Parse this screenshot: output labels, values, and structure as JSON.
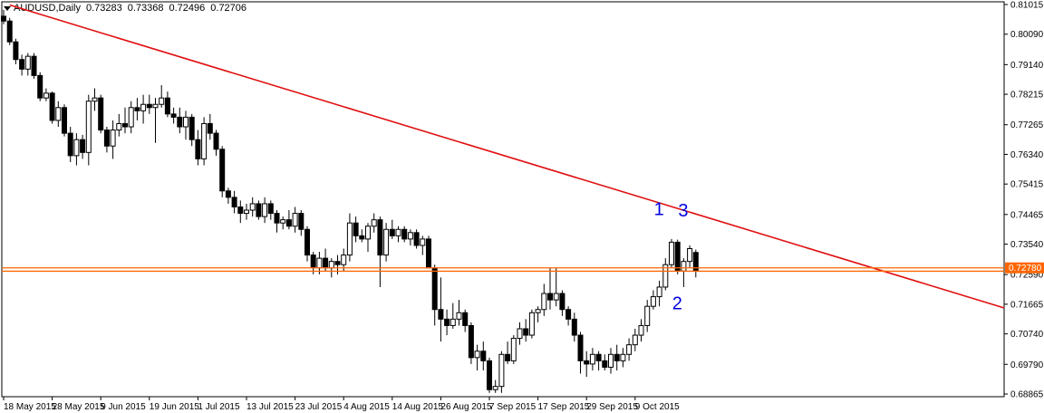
{
  "header": {
    "symbol": "AUDUSD,Daily",
    "open": "0.73283",
    "high": "0.73368",
    "low": "0.72496",
    "close": "0.72706"
  },
  "current_price_label": "0.72780",
  "annotations": [
    "1",
    "2",
    "3"
  ],
  "colors": {
    "trendline": "#e01010",
    "horizontal_line": "#ff6600",
    "annotation": "#0000e0",
    "price_tag": "#ff6600",
    "candle_bull_fill": "#ffffff",
    "candle_bear_fill": "#000000"
  },
  "chart_data": {
    "type": "candlestick",
    "symbol": "AUDUSD",
    "timeframe": "Daily",
    "y_ticks": [
      "0.81015",
      "0.80090",
      "0.79140",
      "0.78215",
      "0.77265",
      "0.76340",
      "0.75415",
      "0.74465",
      "0.73540",
      "0.72590",
      "0.71665",
      "0.70740",
      "0.69790",
      "0.68865"
    ],
    "ylim": [
      0.68865,
      0.81015
    ],
    "x_tick_labels": [
      "18 May 2015",
      "28 May 2015",
      "9 Jun 2015",
      "19 Jun 2015",
      "1 Jul 2015",
      "13 Jul 2015",
      "23 Jul 2015",
      "4 Aug 2015",
      "14 Aug 2015",
      "26 Aug 2015",
      "7 Sep 2015",
      "17 Sep 2015",
      "29 Sep 2015",
      "9 Oct 2015"
    ],
    "x_tick_bar_index": [
      0,
      8,
      16,
      24,
      32,
      40,
      48,
      56,
      64,
      72,
      80,
      88,
      96,
      104
    ],
    "candles": [
      [
        0.8065,
        0.8085,
        0.804,
        0.805
      ],
      [
        0.805,
        0.806,
        0.7975,
        0.7985
      ],
      [
        0.7985,
        0.7995,
        0.7915,
        0.793
      ],
      [
        0.793,
        0.7945,
        0.788,
        0.79
      ],
      [
        0.79,
        0.795,
        0.788,
        0.794
      ],
      [
        0.794,
        0.795,
        0.787,
        0.788
      ],
      [
        0.788,
        0.789,
        0.78,
        0.781
      ],
      [
        0.781,
        0.784,
        0.78,
        0.7825
      ],
      [
        0.7825,
        0.783,
        0.773,
        0.774
      ],
      [
        0.774,
        0.78,
        0.772,
        0.778
      ],
      [
        0.778,
        0.779,
        0.769,
        0.77
      ],
      [
        0.77,
        0.772,
        0.761,
        0.763
      ],
      [
        0.763,
        0.77,
        0.76,
        0.768
      ],
      [
        0.768,
        0.7695,
        0.762,
        0.764
      ],
      [
        0.764,
        0.782,
        0.76,
        0.78
      ],
      [
        0.78,
        0.784,
        0.777,
        0.781
      ],
      [
        0.781,
        0.782,
        0.77,
        0.771
      ],
      [
        0.771,
        0.772,
        0.764,
        0.766
      ],
      [
        0.766,
        0.774,
        0.762,
        0.771
      ],
      [
        0.771,
        0.776,
        0.769,
        0.773
      ],
      [
        0.773,
        0.778,
        0.77,
        0.772
      ],
      [
        0.772,
        0.78,
        0.77,
        0.778
      ],
      [
        0.778,
        0.781,
        0.774,
        0.777
      ],
      [
        0.777,
        0.782,
        0.773,
        0.779
      ],
      [
        0.779,
        0.782,
        0.776,
        0.778
      ],
      [
        0.778,
        0.781,
        0.767,
        0.779
      ],
      [
        0.779,
        0.785,
        0.778,
        0.781
      ],
      [
        0.781,
        0.783,
        0.775,
        0.776
      ],
      [
        0.776,
        0.778,
        0.773,
        0.775
      ],
      [
        0.775,
        0.778,
        0.77,
        0.772
      ],
      [
        0.772,
        0.777,
        0.768,
        0.775
      ],
      [
        0.775,
        0.776,
        0.766,
        0.768
      ],
      [
        0.768,
        0.771,
        0.76,
        0.762
      ],
      [
        0.762,
        0.775,
        0.76,
        0.773
      ],
      [
        0.773,
        0.776,
        0.768,
        0.77
      ],
      [
        0.77,
        0.771,
        0.763,
        0.765
      ],
      [
        0.765,
        0.766,
        0.75,
        0.752
      ],
      [
        0.752,
        0.753,
        0.748,
        0.75
      ],
      [
        0.75,
        0.752,
        0.745,
        0.747
      ],
      [
        0.747,
        0.749,
        0.742,
        0.745
      ],
      [
        0.745,
        0.748,
        0.743,
        0.746
      ],
      [
        0.746,
        0.75,
        0.744,
        0.748
      ],
      [
        0.748,
        0.749,
        0.743,
        0.744
      ],
      [
        0.744,
        0.75,
        0.742,
        0.748
      ],
      [
        0.748,
        0.749,
        0.743,
        0.745
      ],
      [
        0.745,
        0.746,
        0.739,
        0.742
      ],
      [
        0.742,
        0.744,
        0.74,
        0.743
      ],
      [
        0.743,
        0.746,
        0.74,
        0.741
      ],
      [
        0.741,
        0.747,
        0.739,
        0.745
      ],
      [
        0.745,
        0.746,
        0.738,
        0.74
      ],
      [
        0.74,
        0.741,
        0.73,
        0.732
      ],
      [
        0.732,
        0.733,
        0.726,
        0.728
      ],
      [
        0.728,
        0.733,
        0.726,
        0.731
      ],
      [
        0.731,
        0.734,
        0.727,
        0.728
      ],
      [
        0.728,
        0.731,
        0.725,
        0.73
      ],
      [
        0.73,
        0.732,
        0.726,
        0.729
      ],
      [
        0.729,
        0.734,
        0.727,
        0.732
      ],
      [
        0.732,
        0.745,
        0.73,
        0.742
      ],
      [
        0.742,
        0.744,
        0.736,
        0.738
      ],
      [
        0.738,
        0.74,
        0.736,
        0.737
      ],
      [
        0.737,
        0.742,
        0.733,
        0.741
      ],
      [
        0.741,
        0.745,
        0.739,
        0.743
      ],
      [
        0.743,
        0.744,
        0.722,
        0.732
      ],
      [
        0.732,
        0.742,
        0.73,
        0.74
      ],
      [
        0.74,
        0.743,
        0.737,
        0.738
      ],
      [
        0.738,
        0.741,
        0.736,
        0.74
      ],
      [
        0.74,
        0.741,
        0.736,
        0.737
      ],
      [
        0.737,
        0.74,
        0.735,
        0.739
      ],
      [
        0.739,
        0.74,
        0.734,
        0.735
      ],
      [
        0.735,
        0.738,
        0.732,
        0.737
      ],
      [
        0.737,
        0.738,
        0.729,
        0.728
      ],
      [
        0.728,
        0.729,
        0.71,
        0.715
      ],
      [
        0.715,
        0.725,
        0.705,
        0.712
      ],
      [
        0.712,
        0.715,
        0.707,
        0.71
      ],
      [
        0.71,
        0.717,
        0.709,
        0.712
      ],
      [
        0.712,
        0.718,
        0.71,
        0.714
      ],
      [
        0.714,
        0.715,
        0.708,
        0.71
      ],
      [
        0.71,
        0.711,
        0.698,
        0.7
      ],
      [
        0.7,
        0.704,
        0.696,
        0.702
      ],
      [
        0.702,
        0.705,
        0.696,
        0.699
      ],
      [
        0.699,
        0.7,
        0.689,
        0.69
      ],
      [
        0.69,
        0.693,
        0.689,
        0.691
      ],
      [
        0.691,
        0.702,
        0.689,
        0.701
      ],
      [
        0.701,
        0.705,
        0.698,
        0.699
      ],
      [
        0.699,
        0.707,
        0.698,
        0.706
      ],
      [
        0.706,
        0.711,
        0.704,
        0.709
      ],
      [
        0.709,
        0.712,
        0.705,
        0.707
      ],
      [
        0.707,
        0.715,
        0.706,
        0.714
      ],
      [
        0.714,
        0.716,
        0.711,
        0.715
      ],
      [
        0.715,
        0.723,
        0.713,
        0.72
      ],
      [
        0.72,
        0.728,
        0.715,
        0.718
      ],
      [
        0.718,
        0.728,
        0.716,
        0.72
      ],
      [
        0.72,
        0.721,
        0.713,
        0.715
      ],
      [
        0.715,
        0.716,
        0.71,
        0.712
      ],
      [
        0.712,
        0.714,
        0.705,
        0.707
      ],
      [
        0.707,
        0.708,
        0.695,
        0.699
      ],
      [
        0.699,
        0.702,
        0.694,
        0.698
      ],
      [
        0.698,
        0.703,
        0.696,
        0.701
      ],
      [
        0.701,
        0.702,
        0.696,
        0.699
      ],
      [
        0.699,
        0.701,
        0.696,
        0.697
      ],
      [
        0.697,
        0.703,
        0.695,
        0.701
      ],
      [
        0.701,
        0.704,
        0.696,
        0.699
      ],
      [
        0.699,
        0.703,
        0.697,
        0.701
      ],
      [
        0.701,
        0.706,
        0.699,
        0.704
      ],
      [
        0.704,
        0.709,
        0.702,
        0.707
      ],
      [
        0.707,
        0.712,
        0.705,
        0.71
      ],
      [
        0.71,
        0.718,
        0.708,
        0.716
      ],
      [
        0.716,
        0.721,
        0.715,
        0.719
      ],
      [
        0.719,
        0.724,
        0.716,
        0.722
      ],
      [
        0.722,
        0.731,
        0.721,
        0.729
      ],
      [
        0.729,
        0.737,
        0.728,
        0.736
      ],
      [
        0.736,
        0.7368,
        0.726,
        0.727
      ],
      [
        0.727,
        0.731,
        0.722,
        0.73
      ],
      [
        0.73,
        0.735,
        0.728,
        0.734
      ],
      [
        0.7328,
        0.7337,
        0.725,
        0.7271
      ]
    ]
  }
}
